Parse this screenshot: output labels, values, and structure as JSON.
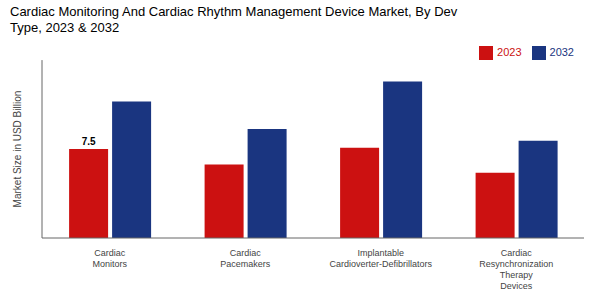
{
  "chart_data": {
    "type": "bar",
    "title": "Cardiac Monitoring And Cardiac Rhythm Management Device Market, By Dev\nType, 2023 & 2032",
    "ylabel": "Market Size in USD Billion",
    "categories": [
      "Cardiac\nMonitors",
      "Cardiac\nPacemakers",
      "Implantable\nCardioverter-Defibrillators",
      "Cardiac\nResynchronization\nTherapy\nDevices"
    ],
    "series": [
      {
        "name": "2023",
        "color": "#cc1111",
        "values": [
          7.5,
          6.2,
          7.6,
          5.5
        ]
      },
      {
        "name": "2032",
        "color": "#1a3580",
        "values": [
          11.5,
          9.2,
          13.2,
          8.2
        ]
      }
    ],
    "ylim": [
      0,
      15
    ],
    "tick_labels": "x",
    "grid": false,
    "legend": "upper right",
    "annotations": [
      {
        "text": "7.5",
        "series": "2023",
        "category": "Cardiac\nMonitors"
      }
    ]
  }
}
